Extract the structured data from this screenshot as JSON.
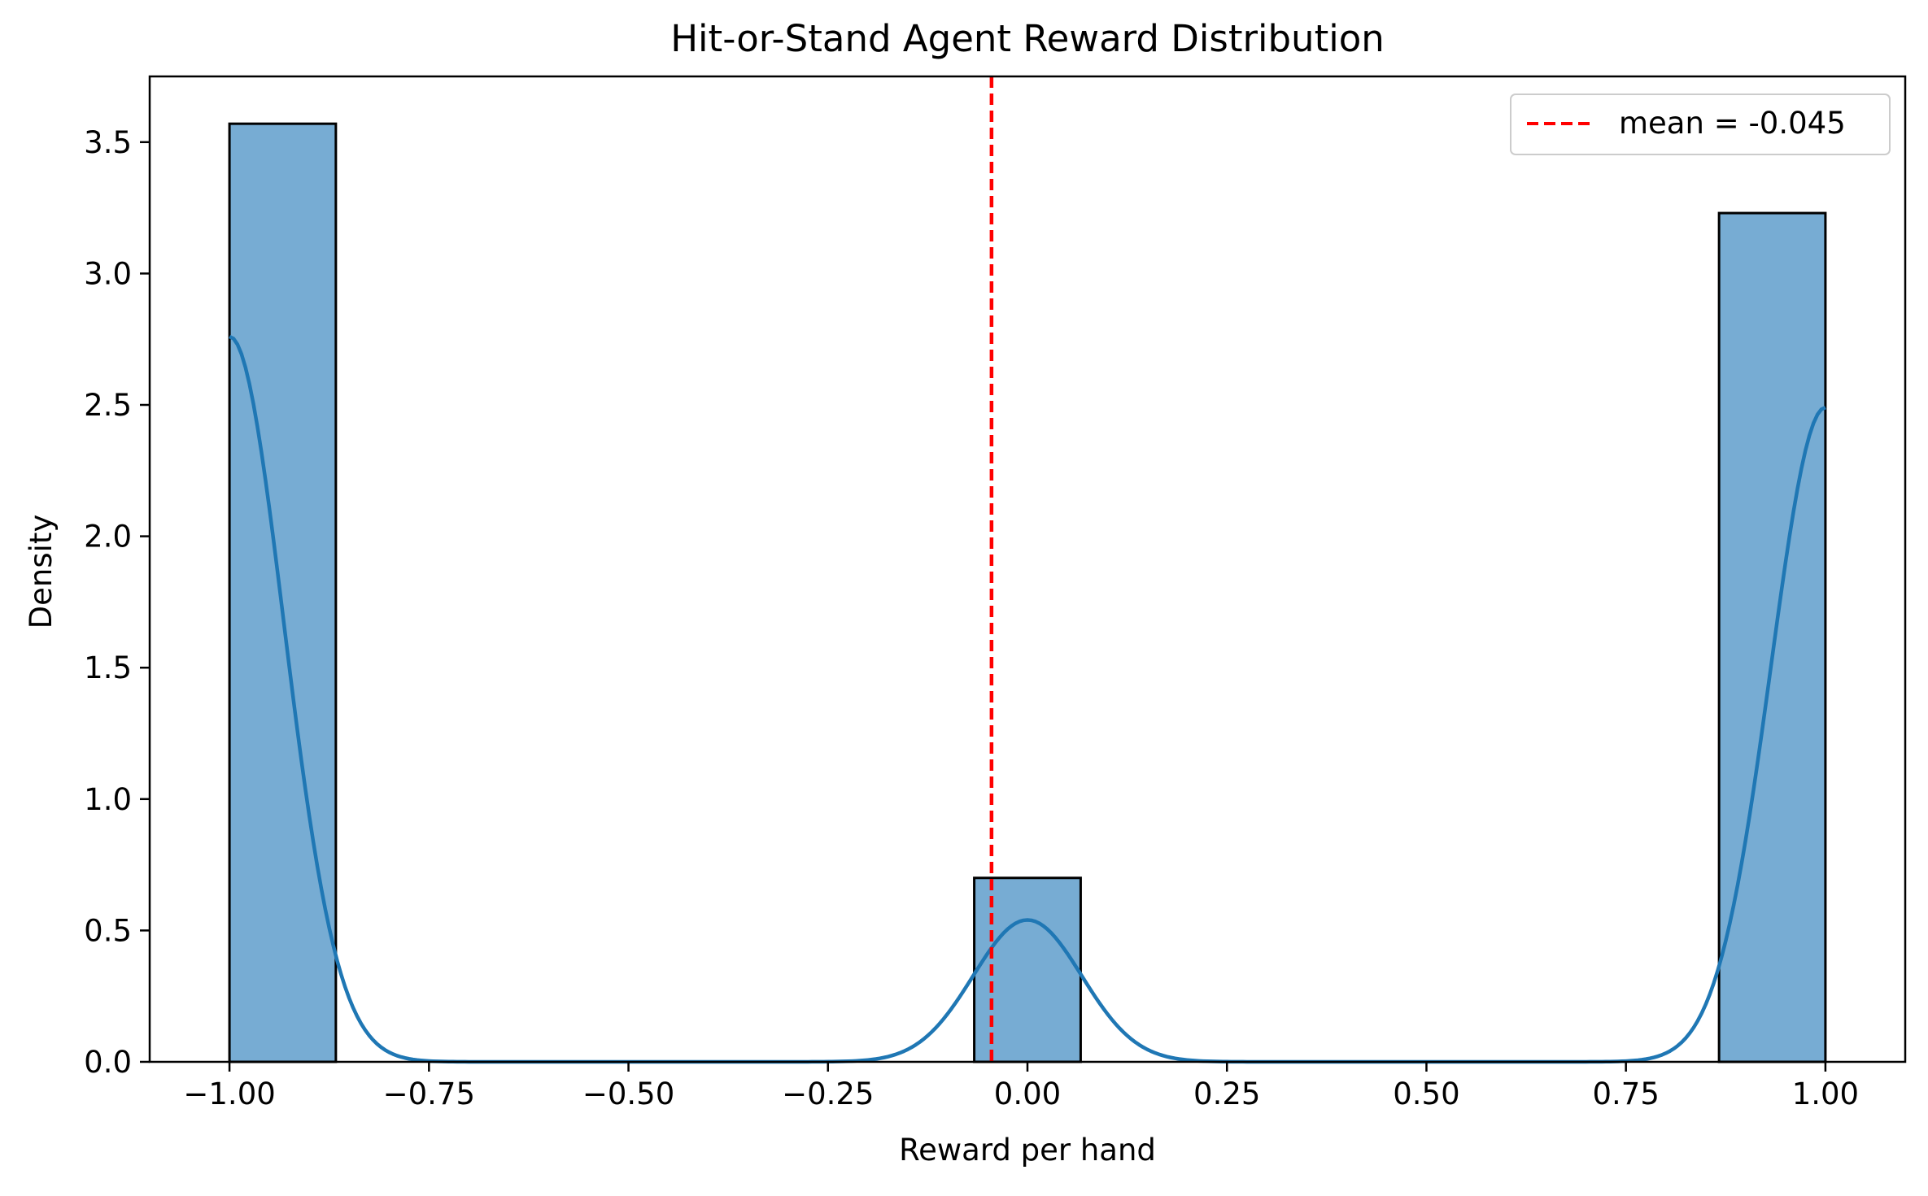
{
  "chart_data": {
    "type": "bar",
    "title": "Hit-or-Stand Agent Reward Distribution",
    "xlabel": "Reward per hand",
    "ylabel": "Density",
    "xlim": [
      -1.1,
      1.1
    ],
    "ylim": [
      0,
      3.75
    ],
    "xticks": [
      -1.0,
      -0.75,
      -0.5,
      -0.25,
      0.0,
      0.25,
      0.5,
      0.75,
      1.0
    ],
    "xtick_labels": [
      "−1.00",
      "−0.75",
      "−0.50",
      "−0.25",
      "0.00",
      "0.25",
      "0.50",
      "0.75",
      "1.00"
    ],
    "yticks": [
      0.0,
      0.5,
      1.0,
      1.5,
      2.0,
      2.5,
      3.0,
      3.5
    ],
    "ytick_labels": [
      "0.0",
      "0.5",
      "1.0",
      "1.5",
      "2.0",
      "2.5",
      "3.0",
      "3.5"
    ],
    "bins": [
      {
        "x0": -1.0,
        "x1": -0.8667,
        "density": 3.57
      },
      {
        "x0": -0.0667,
        "x1": 0.0667,
        "density": 0.7
      },
      {
        "x0": 0.8667,
        "x1": 1.0,
        "density": 3.23
      }
    ],
    "kde": {
      "components": [
        {
          "center": -1.0,
          "peak": 2.76,
          "sigma": 0.068
        },
        {
          "center": 0.0,
          "peak": 0.54,
          "sigma": 0.068
        },
        {
          "center": 1.0,
          "peak": 2.49,
          "sigma": 0.068
        }
      ],
      "x_range": [
        -1.0,
        1.0
      ]
    },
    "mean_line": {
      "x": -0.045,
      "label": "mean = -0.045"
    },
    "legend_position": "top-right",
    "grid": false,
    "colors": {
      "bar_fill": "#77acd3",
      "bar_edge": "#000000",
      "kde_line": "#1f77b4",
      "mean_line": "#ff0000"
    }
  }
}
